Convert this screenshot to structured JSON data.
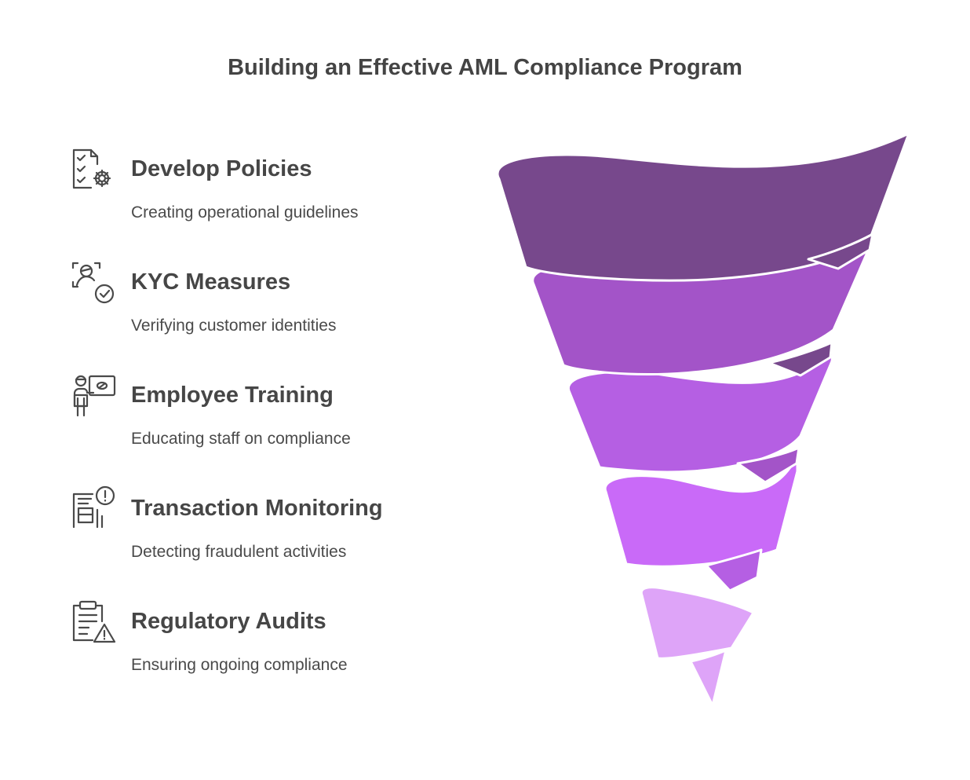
{
  "title": "Building an Effective AML Compliance Program",
  "items": [
    {
      "heading": "Develop Policies",
      "description": "Creating operational guidelines",
      "icon": "policy-checklist-gear-icon",
      "color": "#77488c"
    },
    {
      "heading": "KYC Measures",
      "description": "Verifying customer identities",
      "icon": "identity-verification-icon",
      "color": "#a354c8"
    },
    {
      "heading": "Employee Training",
      "description": "Educating staff on compliance",
      "icon": "trainer-presentation-icon",
      "color": "#b55fe3"
    },
    {
      "heading": "Transaction Monitoring",
      "description": "Detecting fraudulent activities",
      "icon": "transaction-alert-icon",
      "color": "#c96af8"
    },
    {
      "heading": "Regulatory Audits",
      "description": "Ensuring ongoing compliance",
      "icon": "audit-warning-clipboard-icon",
      "color": "#dea4f8"
    }
  ]
}
